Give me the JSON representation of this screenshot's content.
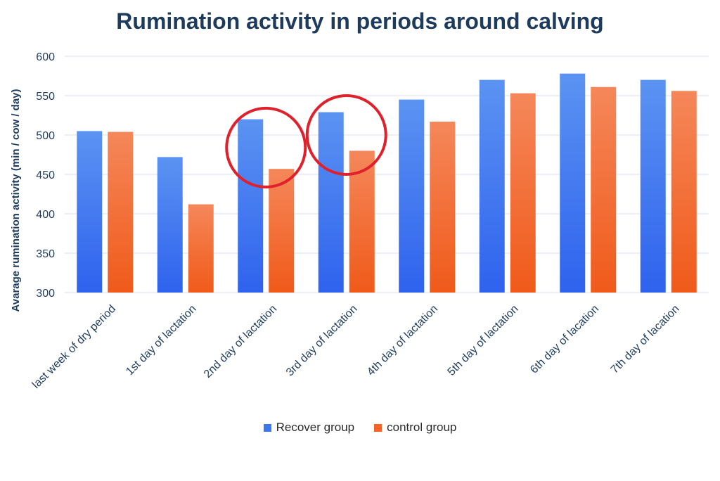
{
  "chart_data": {
    "type": "bar",
    "title": "Rumination activity in periods around calving",
    "xlabel": "",
    "ylabel": "Avarage rumination activity (min / cow / day)",
    "ylim": [
      300,
      600
    ],
    "yticks": [
      300,
      350,
      400,
      450,
      500,
      550,
      600
    ],
    "grid": true,
    "legend_position": "bottom",
    "categories": [
      "last week of dry period",
      "1st day of lactation",
      "2nd day of lactation",
      "3rd day of lactation",
      "4th day of lactation",
      "5th day of lactation",
      "6th day of lacation",
      "7th day of lacation"
    ],
    "series": [
      {
        "name": "Recover group",
        "color": "#3b78f0",
        "values": [
          505,
          472,
          520,
          529,
          545,
          570,
          578,
          570
        ]
      },
      {
        "name": "control group",
        "color": "#f46428",
        "values": [
          504,
          412,
          457,
          480,
          517,
          553,
          561,
          556
        ]
      }
    ],
    "annotations": [
      {
        "type": "circle",
        "category": "2nd day of lactation",
        "color": "#e0202a"
      },
      {
        "type": "circle",
        "category": "3rd day of lactation",
        "color": "#e0202a"
      }
    ]
  }
}
